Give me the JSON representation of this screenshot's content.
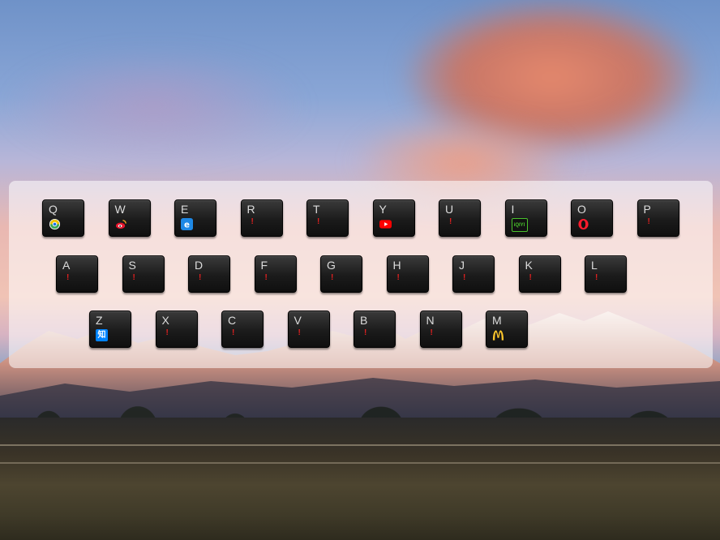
{
  "keyboard": {
    "rows": [
      [
        {
          "letter": "Q",
          "icon": "360-browser-icon"
        },
        {
          "letter": "W",
          "icon": "weibo-icon"
        },
        {
          "letter": "E",
          "icon": "ie-browser-icon"
        },
        {
          "letter": "R",
          "icon": "unset-marker",
          "mark": "!"
        },
        {
          "letter": "T",
          "icon": "unset-marker",
          "mark": "!"
        },
        {
          "letter": "Y",
          "icon": "youtube-icon"
        },
        {
          "letter": "U",
          "icon": "unset-marker",
          "mark": "!"
        },
        {
          "letter": "I",
          "icon": "iqiyi-icon",
          "logo_text": "iQIYI"
        },
        {
          "letter": "O",
          "icon": "opera-icon"
        },
        {
          "letter": "P",
          "icon": "unset-marker",
          "mark": "!"
        }
      ],
      [
        {
          "letter": "A",
          "icon": "unset-marker",
          "mark": "!"
        },
        {
          "letter": "S",
          "icon": "unset-marker",
          "mark": "!"
        },
        {
          "letter": "D",
          "icon": "unset-marker",
          "mark": "!"
        },
        {
          "letter": "F",
          "icon": "unset-marker",
          "mark": "!"
        },
        {
          "letter": "G",
          "icon": "unset-marker",
          "mark": "!"
        },
        {
          "letter": "H",
          "icon": "unset-marker",
          "mark": "!"
        },
        {
          "letter": "J",
          "icon": "unset-marker",
          "mark": "!"
        },
        {
          "letter": "K",
          "icon": "unset-marker",
          "mark": "!"
        },
        {
          "letter": "L",
          "icon": "unset-marker",
          "mark": "!"
        }
      ],
      [
        {
          "letter": "Z",
          "icon": "zhihu-icon",
          "logo_text": "知"
        },
        {
          "letter": "X",
          "icon": "unset-marker",
          "mark": "!"
        },
        {
          "letter": "C",
          "icon": "unset-marker",
          "mark": "!"
        },
        {
          "letter": "V",
          "icon": "unset-marker",
          "mark": "!"
        },
        {
          "letter": "B",
          "icon": "unset-marker",
          "mark": "!"
        },
        {
          "letter": "N",
          "icon": "unset-marker",
          "mark": "!"
        },
        {
          "letter": "M",
          "icon": "mcdonalds-icon"
        }
      ]
    ]
  },
  "colors": {
    "key_text": "#dcdcdc",
    "marker": "#e02020",
    "panel": "rgba(255,255,255,0.55)"
  }
}
